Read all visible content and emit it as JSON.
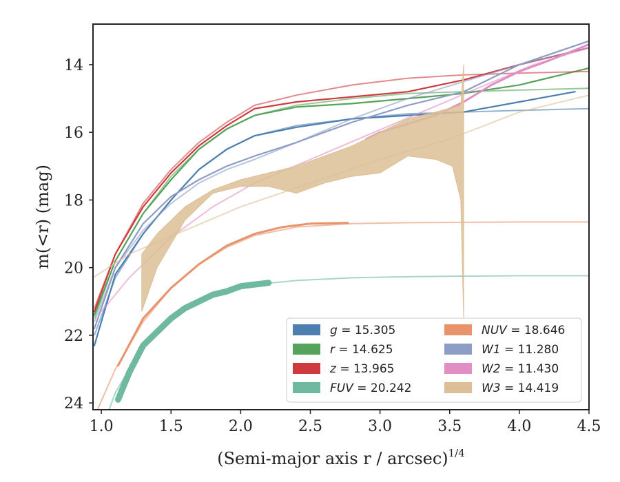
{
  "chart_data": {
    "type": "line",
    "xlabel": "(Semi-major axis r / arcsec)",
    "xlabel_sup": "1/4",
    "ylabel": "m(<r) (mag)",
    "xlim": [
      0.94,
      4.5
    ],
    "ylim": [
      24.2,
      12.8
    ],
    "y_inverted": true,
    "x_ticks": [
      1.0,
      1.5,
      2.0,
      2.5,
      3.0,
      3.5,
      4.0,
      4.5
    ],
    "x_tick_labels": [
      "1.0",
      "1.5",
      "2.0",
      "2.5",
      "3.0",
      "3.5",
      "4.0",
      "4.5"
    ],
    "y_ticks": [
      14,
      16,
      18,
      20,
      22,
      24
    ],
    "y_tick_labels": [
      "14",
      "16",
      "18",
      "20",
      "22",
      "24"
    ],
    "legend_position": "lower-right",
    "legend": [
      {
        "band": "g",
        "value": "15.305",
        "color": "#4c7fb0"
      },
      {
        "band": "r",
        "value": "14.625",
        "color": "#55a35a"
      },
      {
        "band": "z",
        "value": "13.965",
        "color": "#cf3a3e"
      },
      {
        "band": "FUV",
        "value": "20.242",
        "color": "#6fb9a0"
      },
      {
        "band": "NUV",
        "value": "18.646",
        "color": "#e8936c"
      },
      {
        "band": "W1",
        "value": "11.280",
        "color": "#8e9dc6"
      },
      {
        "band": "W2",
        "value": "11.430",
        "color": "#df8fc4"
      },
      {
        "band": "W3",
        "value": "14.419",
        "color": "#dcbf96"
      }
    ],
    "series": [
      {
        "name": "g",
        "color": "#4c7fb0",
        "observed": {
          "x": [
            0.95,
            1.1,
            1.3,
            1.5,
            1.7,
            1.9,
            2.1,
            2.4,
            2.8,
            3.2,
            3.6,
            4.0,
            4.4
          ],
          "y": [
            22.3,
            20.2,
            19.0,
            18.0,
            17.1,
            16.5,
            16.1,
            15.85,
            15.6,
            15.5,
            15.4,
            15.1,
            14.8
          ]
        },
        "model": {
          "x": [
            0.95,
            1.1,
            1.3,
            1.5,
            1.7,
            1.9,
            2.1,
            2.4,
            2.8,
            3.2,
            3.6,
            4.0,
            4.5
          ],
          "y": [
            22.0,
            20.3,
            19.0,
            18.0,
            17.1,
            16.5,
            16.1,
            15.8,
            15.6,
            15.45,
            15.4,
            15.35,
            15.3
          ]
        }
      },
      {
        "name": "r",
        "color": "#55a35a",
        "observed": {
          "x": [
            0.95,
            1.1,
            1.3,
            1.5,
            1.7,
            1.9,
            2.1,
            2.4,
            2.8,
            3.2,
            3.6,
            4.0,
            4.5
          ],
          "y": [
            21.4,
            19.8,
            18.4,
            17.4,
            16.5,
            15.9,
            15.5,
            15.25,
            15.15,
            15.0,
            14.85,
            14.6,
            14.1
          ]
        },
        "model": {
          "x": [
            0.95,
            1.1,
            1.3,
            1.5,
            1.7,
            1.9,
            2.1,
            2.4,
            2.8,
            3.2,
            3.6,
            4.0,
            4.5
          ],
          "y": [
            21.5,
            19.8,
            18.4,
            17.3,
            16.5,
            15.9,
            15.5,
            15.2,
            15.0,
            14.85,
            14.8,
            14.75,
            14.7
          ]
        }
      },
      {
        "name": "z",
        "color": "#cf3a3e",
        "observed": {
          "x": [
            0.95,
            1.1,
            1.3,
            1.5,
            1.7,
            1.9,
            2.1,
            2.4,
            2.8,
            3.2,
            3.6,
            4.0,
            4.5
          ],
          "y": [
            21.3,
            19.6,
            18.2,
            17.2,
            16.4,
            15.8,
            15.3,
            15.1,
            14.95,
            14.8,
            14.45,
            14.0,
            13.5
          ]
        },
        "model": {
          "x": [
            0.95,
            1.1,
            1.3,
            1.5,
            1.7,
            1.9,
            2.1,
            2.4,
            2.8,
            3.2,
            3.6,
            4.0,
            4.5
          ],
          "y": [
            21.2,
            19.6,
            18.1,
            17.1,
            16.3,
            15.7,
            15.2,
            14.9,
            14.6,
            14.4,
            14.3,
            14.25,
            14.2
          ]
        }
      },
      {
        "name": "FUV",
        "color": "#6fb9a0",
        "observed": {
          "x": [
            1.12,
            1.2,
            1.3,
            1.4,
            1.5,
            1.6,
            1.7,
            1.8,
            1.9,
            2.0,
            2.1,
            2.2
          ],
          "y": [
            23.9,
            23.1,
            22.3,
            21.9,
            21.5,
            21.2,
            21.0,
            20.8,
            20.7,
            20.55,
            20.5,
            20.45
          ]
        },
        "model": {
          "x": [
            0.94,
            1.1,
            1.3,
            1.5,
            1.7,
            1.9,
            2.1,
            2.4,
            2.8,
            3.2,
            3.6,
            4.0,
            4.5
          ],
          "y": [
            25.5,
            23.7,
            22.3,
            21.5,
            21.0,
            20.7,
            20.5,
            20.38,
            20.3,
            20.27,
            20.25,
            20.24,
            20.24
          ]
        }
      },
      {
        "name": "NUV",
        "color": "#e8936c",
        "observed": {
          "x": [
            1.12,
            1.3,
            1.5,
            1.7,
            1.9,
            2.1,
            2.3,
            2.5,
            2.77
          ],
          "y": [
            22.9,
            21.5,
            20.6,
            19.9,
            19.35,
            19.0,
            18.8,
            18.7,
            18.68
          ]
        },
        "model": {
          "x": [
            0.94,
            1.1,
            1.3,
            1.5,
            1.7,
            1.9,
            2.1,
            2.4,
            2.8,
            3.2,
            3.6,
            4.0,
            4.5
          ],
          "y": [
            24.5,
            23.0,
            21.6,
            20.6,
            19.9,
            19.4,
            19.05,
            18.8,
            18.7,
            18.67,
            18.66,
            18.65,
            18.65
          ]
        }
      },
      {
        "name": "W1",
        "color": "#8e9dc6",
        "observed": {
          "x": [
            0.95,
            1.1,
            1.3,
            1.5,
            1.7,
            1.9,
            2.1,
            2.4,
            2.8,
            3.2,
            3.6,
            4.0,
            4.5
          ],
          "y": [
            21.8,
            20.0,
            18.7,
            17.9,
            17.4,
            17.0,
            16.7,
            16.3,
            15.7,
            15.2,
            14.8,
            14.0,
            13.3
          ]
        },
        "model": {
          "x": [
            0.95,
            1.1,
            1.3,
            1.5,
            1.7,
            1.9,
            2.1,
            2.4,
            2.8,
            3.2,
            3.6,
            4.0,
            4.5
          ],
          "y": [
            21.6,
            20.0,
            18.9,
            18.1,
            17.5,
            17.1,
            16.8,
            16.3,
            15.6,
            15.0,
            14.5,
            14.0,
            13.5
          ]
        }
      },
      {
        "name": "W2",
        "color": "#df8fc4",
        "observed": {
          "x": [
            2.9,
            3.0,
            3.2,
            3.4,
            3.6,
            3.8,
            4.0,
            4.2,
            4.5
          ],
          "y": [
            16.2,
            16.0,
            15.75,
            15.5,
            15.1,
            14.6,
            14.2,
            13.9,
            13.4
          ]
        },
        "model": {
          "x": [
            1.0,
            1.2,
            1.5,
            1.8,
            2.1,
            2.5,
            2.9,
            3.3,
            3.7,
            4.1,
            4.5
          ],
          "y": [
            21.3,
            20.3,
            19.1,
            18.2,
            17.5,
            16.8,
            16.1,
            15.4,
            14.7,
            14.0,
            13.5
          ]
        }
      },
      {
        "name": "W3",
        "color": "#dcbf96",
        "model": {
          "x": [
            0.94,
            1.2,
            1.6,
            2.0,
            2.5,
            3.0,
            3.5,
            4.0,
            4.5
          ],
          "y": [
            20.3,
            19.6,
            18.9,
            18.2,
            17.5,
            16.8,
            16.2,
            15.4,
            14.9
          ]
        },
        "band_upper": {
          "x": [
            1.29,
            1.4,
            1.6,
            1.8,
            2.0,
            2.2,
            2.4,
            2.6,
            2.8,
            3.0,
            3.2,
            3.4,
            3.58,
            3.6
          ],
          "y": [
            19.6,
            19.0,
            18.2,
            17.7,
            17.4,
            17.2,
            17.0,
            16.7,
            16.4,
            16.0,
            15.6,
            15.4,
            15.2,
            14.0
          ]
        },
        "band_lower": {
          "x": [
            1.29,
            1.4,
            1.6,
            1.8,
            2.0,
            2.2,
            2.4,
            2.6,
            2.8,
            3.0,
            3.2,
            3.4,
            3.52,
            3.58,
            3.6
          ],
          "y": [
            21.3,
            20.0,
            18.6,
            17.8,
            17.6,
            17.6,
            17.8,
            17.5,
            17.3,
            17.2,
            16.7,
            16.8,
            17.0,
            18.0,
            21.5
          ]
        }
      }
    ]
  }
}
